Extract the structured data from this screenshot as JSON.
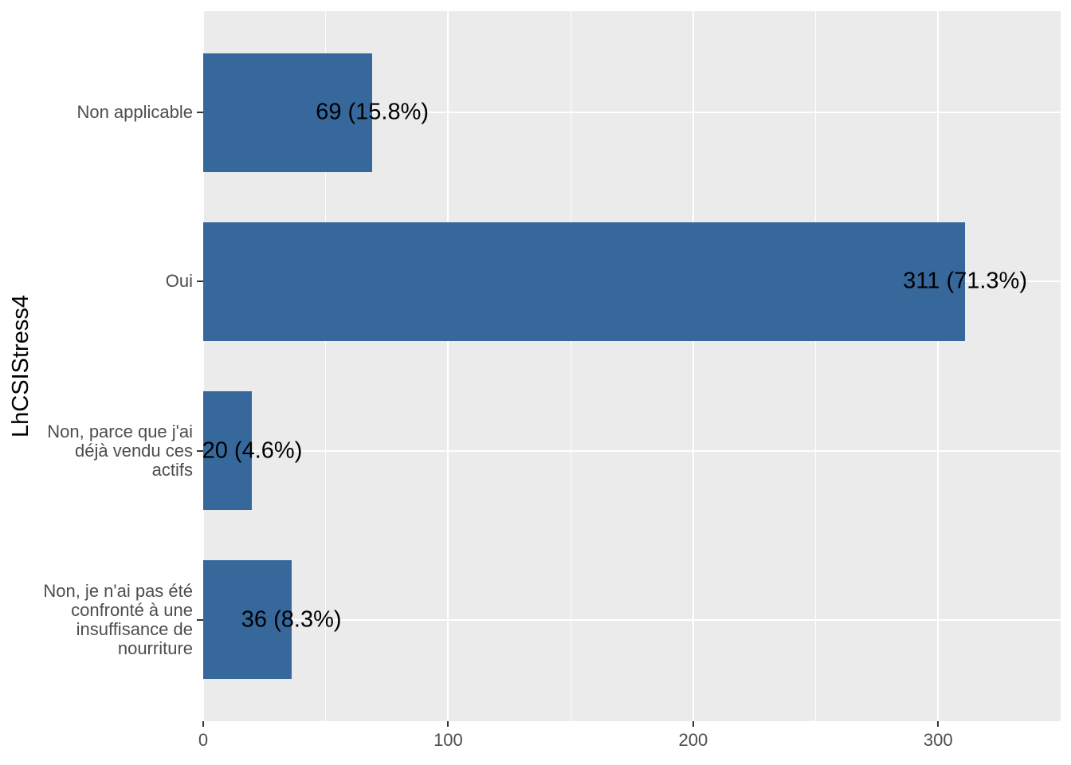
{
  "chart_data": {
    "type": "bar",
    "orientation": "horizontal",
    "title": "",
    "xlabel": "",
    "ylabel": "LhCSIStress4",
    "categories": [
      "Non applicable",
      "Oui",
      "Non, parce que j'ai déjà vendu ces actifs",
      "Non, je n'ai pas été confronté à une insuffisance de nourriture"
    ],
    "category_lines": [
      [
        "Non applicable"
      ],
      [
        "Oui"
      ],
      [
        "Non, parce que j'ai",
        "déjà vendu ces",
        "actifs"
      ],
      [
        "Non, je n'ai pas été",
        "confronté à une",
        "insuffisance de",
        "nourriture"
      ]
    ],
    "values": [
      69,
      311,
      20,
      36
    ],
    "value_labels": [
      "69 (15.8%)",
      "311 (71.3%)",
      "20 (4.6%)",
      "36 (8.3%)"
    ],
    "x_ticks": [
      0,
      100,
      200,
      300
    ],
    "x_minor_ticks": [
      50,
      150,
      250,
      350
    ],
    "xlim": [
      0,
      350
    ],
    "grid": true,
    "legend": false,
    "colors": {
      "bar_fill": "#36689C",
      "panel_background": "#EBEBEB",
      "gridline": "#FFFFFF",
      "tick_mark": "#333333",
      "tick_label": "#4D4D4D",
      "text": "#000000"
    }
  }
}
